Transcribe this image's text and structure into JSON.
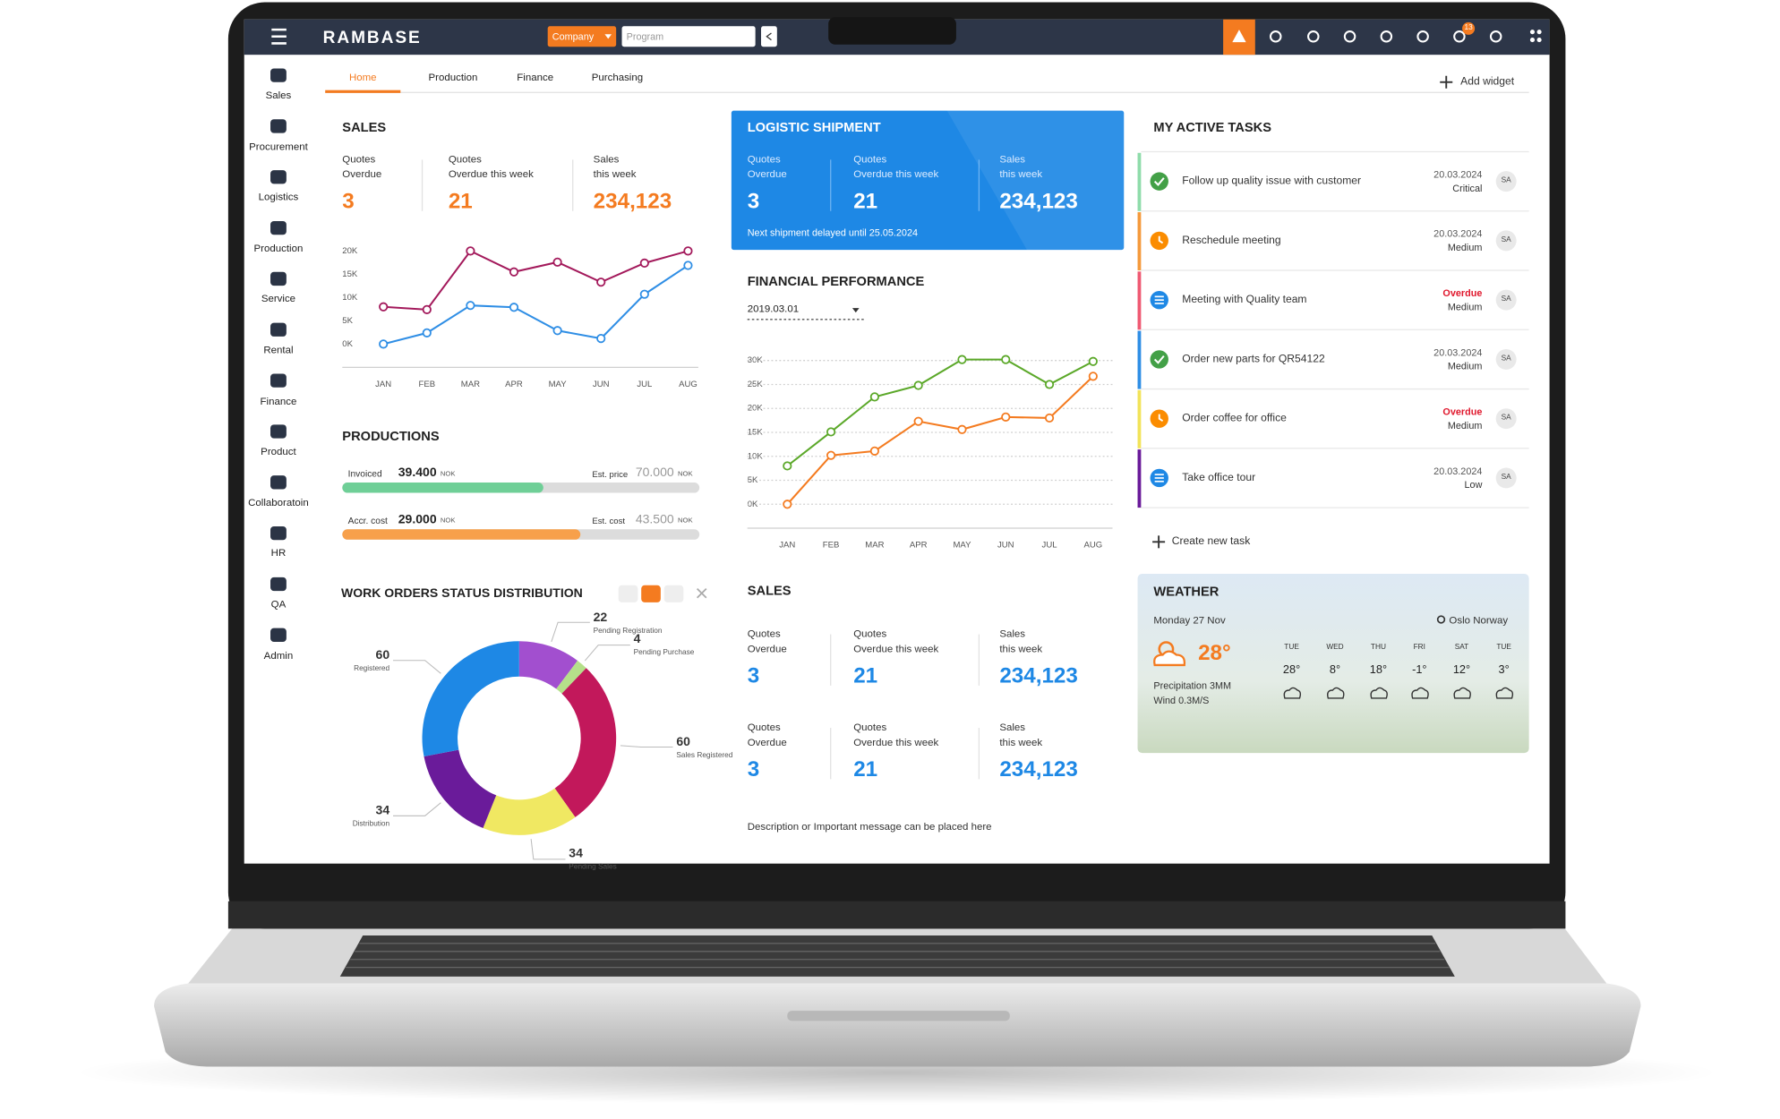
{
  "topbar": {
    "brand": "RAMBASE",
    "company": "Company",
    "program": "Program",
    "badge": "13"
  },
  "sidebar": [
    "Sales",
    "Procurement",
    "Logistics",
    "Production",
    "Service",
    "Rental",
    "Finance",
    "Product",
    "Collaboratoin",
    "HR",
    "QA",
    "Admin"
  ],
  "tabs": {
    "items": [
      "Home",
      "Production",
      "Finance",
      "Purchasing"
    ],
    "active": 0,
    "add": "Add widget"
  },
  "sales": {
    "title": "SALES",
    "kpis": [
      {
        "label": [
          "Quotes",
          "Overdue"
        ],
        "value": "3"
      },
      {
        "label": [
          "Quotes",
          "Overdue this week"
        ],
        "value": "21"
      },
      {
        "label": [
          "Sales",
          "this week"
        ],
        "value": "234,123"
      }
    ],
    "chart": {
      "type": "line",
      "categories": [
        "JAN",
        "FEB",
        "MAR",
        "APR",
        "MAY",
        "JUN",
        "JUL",
        "AUG"
      ],
      "series": [
        {
          "color": "#a3195b",
          "values": [
            8000,
            7400,
            20000,
            15500,
            17600,
            13300,
            17400,
            20000
          ]
        },
        {
          "color": "#2f8ee5",
          "values": [
            0,
            2400,
            8300,
            7900,
            2900,
            1200,
            10700,
            16900
          ]
        }
      ],
      "ylim": [
        -5000,
        20000
      ],
      "yticks": [
        {
          "value": 0,
          "label": "0K"
        },
        {
          "value": 5000,
          "label": "5K"
        },
        {
          "value": 10000,
          "label": "10K"
        },
        {
          "value": 15000,
          "label": "15K"
        },
        {
          "value": 20000,
          "label": "20K"
        }
      ],
      "grid": false
    }
  },
  "productions": {
    "title": "PRODUCTIONS",
    "currency": "NOK",
    "rows": [
      {
        "label": "Invoiced",
        "value": {
          "value": 39400,
          "label": "39.400"
        },
        "target_label": "Est. price",
        "target": {
          "value": 70000,
          "label": "70.000"
        },
        "color": "#6fcf97"
      },
      {
        "label": "Accr. cost",
        "value": {
          "value": 29000,
          "label": "29.000"
        },
        "target_label": "Est. cost",
        "target": {
          "value": 43500,
          "label": "43.500"
        },
        "color": "#f7a04b"
      }
    ]
  },
  "work_orders": {
    "title": "WORK ORDERS STATUS DISTRIBUTION",
    "chart": {
      "type": "donut",
      "labels": [
        "Pending Registration",
        "Pending Purchase",
        "Sales Registered",
        "Pending Sales",
        "Distribution",
        "Registered"
      ],
      "values": [
        22,
        4,
        60,
        34,
        34,
        60
      ],
      "colors": [
        "#a24fcf",
        "#b5e08a",
        "#c2185b",
        "#f0e862",
        "#6a1b9a",
        "#1e88e5"
      ]
    }
  },
  "logistic": {
    "title": "LOGISTIC SHIPMENT",
    "kpis": [
      {
        "label": [
          "Quotes",
          "Overdue"
        ],
        "value": "3"
      },
      {
        "label": [
          "Quotes",
          "Overdue this week"
        ],
        "value": "21"
      },
      {
        "label": [
          "Sales",
          "this week"
        ],
        "value": "234,123"
      }
    ],
    "note": "Next shipment delayed until 25.05.2024"
  },
  "financial": {
    "title": "FINANCIAL PERFORMANCE",
    "date": "2019.03.01",
    "chart": {
      "type": "line",
      "categories": [
        "JAN",
        "FEB",
        "MAR",
        "APR",
        "MAY",
        "JUN",
        "JUL",
        "AUG"
      ],
      "series": [
        {
          "color": "#5ba829",
          "values": [
            8000,
            15100,
            22400,
            24800,
            30200,
            30200,
            25000,
            29800
          ]
        },
        {
          "color": "#f47b20",
          "values": [
            0,
            10200,
            11100,
            17300,
            15600,
            18200,
            18000,
            26700
          ]
        }
      ],
      "ylim": [
        -5000,
        30000
      ],
      "yticks": [
        {
          "value": 0,
          "label": "0K"
        },
        {
          "value": 5000,
          "label": "5K"
        },
        {
          "value": 10000,
          "label": "10K"
        },
        {
          "value": 15000,
          "label": "15K"
        },
        {
          "value": 20000,
          "label": "20K"
        },
        {
          "value": 25000,
          "label": "25K"
        },
        {
          "value": 30000,
          "label": "30K"
        }
      ],
      "grid": true
    }
  },
  "sales2": {
    "title": "SALES",
    "rows": [
      [
        {
          "label": [
            "Quotes",
            "Overdue"
          ],
          "value": "3"
        },
        {
          "label": [
            "Quotes",
            "Overdue this week"
          ],
          "value": "21"
        },
        {
          "label": [
            "Sales",
            "this week"
          ],
          "value": "234,123"
        }
      ],
      [
        {
          "label": [
            "Quotes",
            "Overdue"
          ],
          "value": "3"
        },
        {
          "label": [
            "Quotes",
            "Overdue this week"
          ],
          "value": "21"
        },
        {
          "label": [
            "Sales",
            "this week"
          ],
          "value": "234,123"
        }
      ]
    ],
    "message": "Description or Important message can be placed here"
  },
  "tasks": {
    "title": "MY ACTIVE TASKS",
    "create": "Create new task",
    "items": [
      {
        "title": "Follow up quality issue with customer",
        "due": "20.03.2024",
        "priority": "Critical",
        "assignee": "SA",
        "color": "#8fdcaa",
        "icon": "check",
        "due_color": "#555"
      },
      {
        "title": "Reschedule meeting",
        "due": "20.03.2024",
        "priority": "Medium",
        "assignee": "SA",
        "color": "#f59a3c",
        "icon": "clock",
        "due_color": "#555"
      },
      {
        "title": "Meeting with Quality team",
        "due": "Overdue",
        "priority": "Medium",
        "assignee": "SA",
        "color": "#ef5a73",
        "icon": "list",
        "due_color": "#e0182d"
      },
      {
        "title": "Order new parts for QR54122",
        "due": "20.03.2024",
        "priority": "Medium",
        "assignee": "SA",
        "color": "#2f8ee5",
        "icon": "check",
        "due_color": "#555"
      },
      {
        "title": "Order coffee for office",
        "due": "Overdue",
        "priority": "Medium",
        "assignee": "SA",
        "color": "#f2e35a",
        "icon": "clock",
        "due_color": "#e0182d"
      },
      {
        "title": "Take office tour",
        "due": "20.03.2024",
        "priority": "Low",
        "assignee": "SA",
        "color": "#6a1b9a",
        "icon": "list",
        "due_color": "#555"
      }
    ]
  },
  "weather": {
    "title": "WEATHER",
    "date": "Monday 27 Nov",
    "location": "Oslo Norway",
    "temp": "28°",
    "precipitation": "Precipitation 3MM",
    "wind": "Wind 0.3M/S",
    "days": [
      {
        "day": "TUE",
        "temp": "28°"
      },
      {
        "day": "WED",
        "temp": "8°"
      },
      {
        "day": "THU",
        "temp": "18°"
      },
      {
        "day": "FRI",
        "temp": "-1°"
      },
      {
        "day": "SAT",
        "temp": "12°"
      },
      {
        "day": "TUE",
        "temp": "3°"
      }
    ]
  }
}
